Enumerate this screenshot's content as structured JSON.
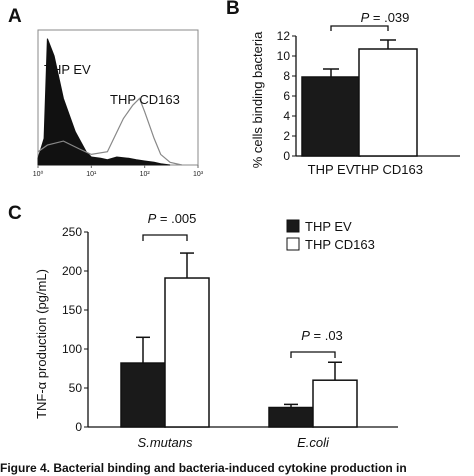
{
  "panel_letters": {
    "a": "A",
    "b": "B",
    "c": "C"
  },
  "caption": "Figure 4. Bacterial binding and bacteria-induced cytokine production in",
  "chart_data": [
    {
      "type": "area",
      "panel": "A",
      "series": [
        {
          "name": "THP EV",
          "style": "filled-black",
          "x": [
            1.0,
            1.3,
            1.5,
            2.0,
            3.0,
            5.0,
            8.0,
            10.0,
            15.0,
            20.0,
            30.0,
            50.0,
            70.0,
            100.0,
            150.0,
            200.0,
            300.0
          ],
          "y": [
            0.05,
            0.2,
            0.95,
            0.82,
            0.5,
            0.25,
            0.1,
            0.06,
            0.05,
            0.04,
            0.06,
            0.05,
            0.04,
            0.03,
            0.02,
            0.01,
            0.0
          ]
        },
        {
          "name": "THP CD163",
          "style": "grey-outline",
          "x": [
            1.0,
            1.5,
            3.0,
            6.0,
            10.0,
            20.0,
            40.0,
            60.0,
            80.0,
            100.0,
            150.0,
            200.0,
            300.0,
            500.0
          ],
          "y": [
            0.1,
            0.15,
            0.18,
            0.12,
            0.08,
            0.1,
            0.35,
            0.45,
            0.5,
            0.4,
            0.2,
            0.08,
            0.02,
            0.0
          ]
        }
      ],
      "x_ticks": [
        "10⁰",
        "10¹",
        "10²",
        "10³"
      ],
      "xlim": [
        1,
        1000
      ],
      "x_scale": "log"
    },
    {
      "type": "bar",
      "panel": "B",
      "categories": [
        "THP EV",
        "THP CD163"
      ],
      "values": [
        7.9,
        10.7
      ],
      "errors": [
        0.8,
        0.9
      ],
      "fills": [
        "#1a1a1a",
        "#ffffff"
      ],
      "ylabel": "% cells binding bacteria",
      "ylim": [
        0,
        12
      ],
      "yticks": [
        0,
        2,
        4,
        6,
        8,
        10,
        12
      ],
      "annotation": "P = .039"
    },
    {
      "type": "bar",
      "panel": "C",
      "categories": [
        "S.mutans",
        "E.coli"
      ],
      "series": [
        {
          "name": "THP EV",
          "color": "#1a1a1a",
          "values": [
            82,
            25
          ],
          "errors": [
            33,
            4
          ]
        },
        {
          "name": "THP CD163",
          "color": "#ffffff",
          "values": [
            191,
            60
          ],
          "errors": [
            32,
            23
          ]
        }
      ],
      "ylabel": "TNF-α production (pg/mL)",
      "ylim": [
        0,
        250
      ],
      "yticks": [
        0,
        50,
        100,
        150,
        200,
        250
      ],
      "legend": "top-right",
      "annotations": [
        "P = .005",
        "P = .03"
      ]
    }
  ]
}
